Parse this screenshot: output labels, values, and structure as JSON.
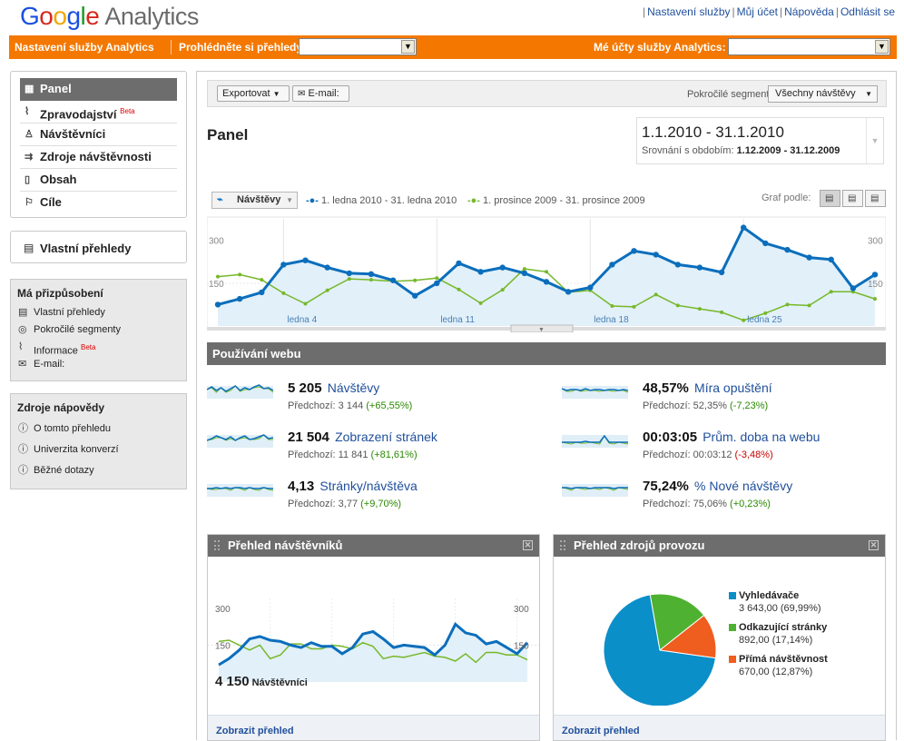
{
  "header": {
    "logo_google": "Google",
    "logo_product": "Analytics",
    "links": [
      "Nastavení služby",
      "Můj účet",
      "Nápověda",
      "Odhlásit se"
    ]
  },
  "orange_bar": {
    "settings_label": "Nastavení služby Analytics",
    "browse_label": "Prohlédněte si přehledy:",
    "browse_value": "",
    "accounts_label": "Mé účty služby Analytics:",
    "accounts_value": ""
  },
  "sidebar": {
    "nav": [
      {
        "label": "Panel",
        "icon": "dashboard-icon",
        "active": true
      },
      {
        "label": "Zpravodajství",
        "badge": "Beta",
        "icon": "intelligence-icon"
      },
      {
        "label": "Návštěvníci",
        "icon": "visitors-icon"
      },
      {
        "label": "Zdroje návštěvnosti",
        "icon": "traffic-sources-icon"
      },
      {
        "label": "Obsah",
        "icon": "content-icon"
      },
      {
        "label": "Cíle",
        "icon": "goals-icon"
      }
    ],
    "custom_reports": "Vlastní přehledy",
    "my_customizations": {
      "title": "Má přizpůsobení",
      "items": [
        "Vlastní přehledy",
        "Pokročilé segmenty",
        "Informace",
        "E-mail:"
      ],
      "beta": "Beta"
    },
    "help": {
      "title": "Zdroje nápovědy",
      "items": [
        "O tomto přehledu",
        "Univerzita konverzí",
        "Běžné dotazy"
      ]
    }
  },
  "toolbar": {
    "export": "Exportovat",
    "email": "E-mail:",
    "segments_label": "Pokročilé segmenty:",
    "segments_value": "Všechny návštěvy"
  },
  "page_title": "Panel",
  "date_range": {
    "range": "1.1.2010 - 31.1.2010",
    "compare_label": "Srovnání s obdobím:",
    "compare_range": "1.12.2009 - 31.12.2009"
  },
  "main_chart": {
    "metric_select": "Návštěvy",
    "legend_current": "1. ledna 2010 - 31. ledna 2010",
    "legend_previous": "1. prosince 2009 - 31. prosince 2009",
    "graph_by": "Graf podle:",
    "ytick_top": "300",
    "ytick_mid": "150",
    "x_labels": [
      "ledna 4",
      "ledna 11",
      "ledna 18",
      "ledna 25"
    ]
  },
  "chart_data": {
    "type": "line",
    "x": [
      1,
      2,
      3,
      4,
      5,
      6,
      7,
      8,
      9,
      10,
      11,
      12,
      13,
      14,
      15,
      16,
      17,
      18,
      19,
      20,
      21,
      22,
      23,
      24,
      25,
      26,
      27,
      28,
      29,
      30,
      31
    ],
    "ylim": [
      0,
      350
    ],
    "series": [
      {
        "name": "1. ledna 2010 - 31. ledna 2010",
        "color": "#0b6ebc",
        "values": [
          75,
          95,
          118,
          215,
          230,
          205,
          185,
          182,
          160,
          106,
          150,
          220,
          190,
          205,
          185,
          155,
          120,
          135,
          215,
          263,
          250,
          215,
          205,
          188,
          345,
          290,
          267,
          240,
          233,
          132,
          180
        ]
      },
      {
        "name": "1. prosince 2009 - 31. prosince 2009",
        "color": "#76b82a",
        "values": [
          173,
          180,
          162,
          115,
          78,
          125,
          165,
          162,
          157,
          160,
          168,
          128,
          80,
          127,
          200,
          190,
          118,
          125,
          70,
          67,
          110,
          72,
          60,
          48,
          20,
          45,
          75,
          72,
          120,
          120,
          95
        ]
      }
    ],
    "visitors_series": [
      {
        "name": "current",
        "values": [
          70,
          95,
          130,
          175,
          185,
          170,
          165,
          150,
          140,
          160,
          145,
          145,
          115,
          140,
          195,
          205,
          175,
          140,
          150,
          145,
          140,
          110,
          150,
          235,
          200,
          190,
          155,
          165,
          140,
          115,
          160
        ]
      },
      {
        "name": "previous",
        "values": [
          165,
          170,
          150,
          130,
          150,
          95,
          110,
          155,
          155,
          135,
          135,
          150,
          145,
          135,
          160,
          145,
          95,
          105,
          100,
          110,
          120,
          105,
          100,
          85,
          115,
          80,
          120,
          120,
          110,
          110,
          90
        ]
      }
    ],
    "pie": {
      "type": "pie",
      "slices": [
        {
          "name": "Vyhledávače",
          "value": 3643.0,
          "pct": 69.99,
          "color": "#0b8fc9"
        },
        {
          "name": "Odkazující stránky",
          "value": 892.0,
          "pct": 17.14,
          "color": "#4fb131"
        },
        {
          "name": "Přímá návštěvnost",
          "value": 670.0,
          "pct": 12.87,
          "color": "#ef5d1f"
        }
      ]
    }
  },
  "web_usage": {
    "title": "Používání webu",
    "metrics": [
      {
        "value": "5 205",
        "name": "Návštěvy",
        "prev_label": "Předchozí:",
        "prev_value": "3 144",
        "change": "(+65,55%)",
        "change_sign": "pos"
      },
      {
        "value": "21 504",
        "name": "Zobrazení stránek",
        "prev_label": "Předchozí:",
        "prev_value": "11 841",
        "change": "(+81,61%)",
        "change_sign": "pos"
      },
      {
        "value": "4,13",
        "name": "Stránky/návštěva",
        "prev_label": "Předchozí:",
        "prev_value": "3,77",
        "change": "(+9,70%)",
        "change_sign": "pos"
      },
      {
        "value": "48,57%",
        "name": "Míra opuštění",
        "prev_label": "Předchozí:",
        "prev_value": "52,35%",
        "change": "(-7,23%)",
        "change_sign": "pos"
      },
      {
        "value": "00:03:05",
        "name": "Prům. doba na webu",
        "prev_label": "Předchozí:",
        "prev_value": "00:03:12",
        "change": "(-3,48%)",
        "change_sign": "neg"
      },
      {
        "value": "75,24%",
        "name": "% Nové návštěvy",
        "prev_label": "Předchozí:",
        "prev_value": "75,06%",
        "change": "(+0,23%)",
        "change_sign": "pos"
      }
    ]
  },
  "visitors_widget": {
    "title": "Přehled návštěvníků",
    "ytick_top": "300",
    "ytick_mid": "150",
    "count": "4 150",
    "count_label": "Návštěvníci",
    "footer_link": "Zobrazit přehled"
  },
  "sources_widget": {
    "title": "Přehled zdrojů provozu",
    "legend": [
      {
        "name": "Vyhledávače",
        "value": "3 643,00 (69,99%)"
      },
      {
        "name": "Odkazující stránky",
        "value": "892,00 (17,14%)"
      },
      {
        "name": "Přímá návštěvnost",
        "value": "670,00 (12,87%)"
      }
    ],
    "footer_link": "Zobrazit přehled"
  }
}
